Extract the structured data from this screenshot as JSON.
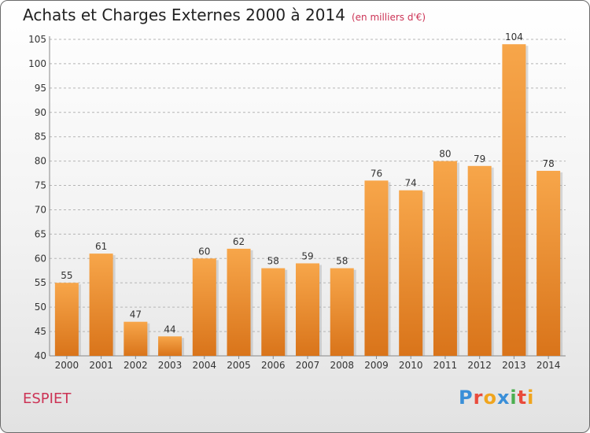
{
  "title": "Achats et Charges Externes 2000 à 2014",
  "unit": "(en milliers d'€)",
  "commune": "ESPIET",
  "logo": {
    "letters": [
      "P",
      "r",
      "o",
      "x",
      "i",
      "t",
      "i"
    ],
    "colors": [
      "#3a8fd8",
      "#e94b3c",
      "#f0a51e",
      "#3a8fd8",
      "#4caf50",
      "#e94b3c",
      "#f0a51e"
    ]
  },
  "colors": {
    "bar_top": "#f7a64a",
    "bar_bottom": "#d9741a",
    "title_accent": "#cc3355"
  },
  "chart_data": {
    "type": "bar",
    "title": "Achats et Charges Externes 2000 à 2014",
    "categories": [
      "2000",
      "2001",
      "2002",
      "2003",
      "2004",
      "2005",
      "2006",
      "2007",
      "2008",
      "2009",
      "2010",
      "2011",
      "2012",
      "2013",
      "2014"
    ],
    "values": [
      55,
      61,
      47,
      44,
      60,
      62,
      58,
      59,
      58,
      76,
      74,
      80,
      79,
      104,
      78
    ],
    "ylim": [
      40,
      105
    ],
    "yticks": [
      40,
      45,
      50,
      55,
      60,
      65,
      70,
      75,
      80,
      85,
      90,
      95,
      100,
      105
    ],
    "grid": true,
    "xlabel": "",
    "ylabel": ""
  }
}
